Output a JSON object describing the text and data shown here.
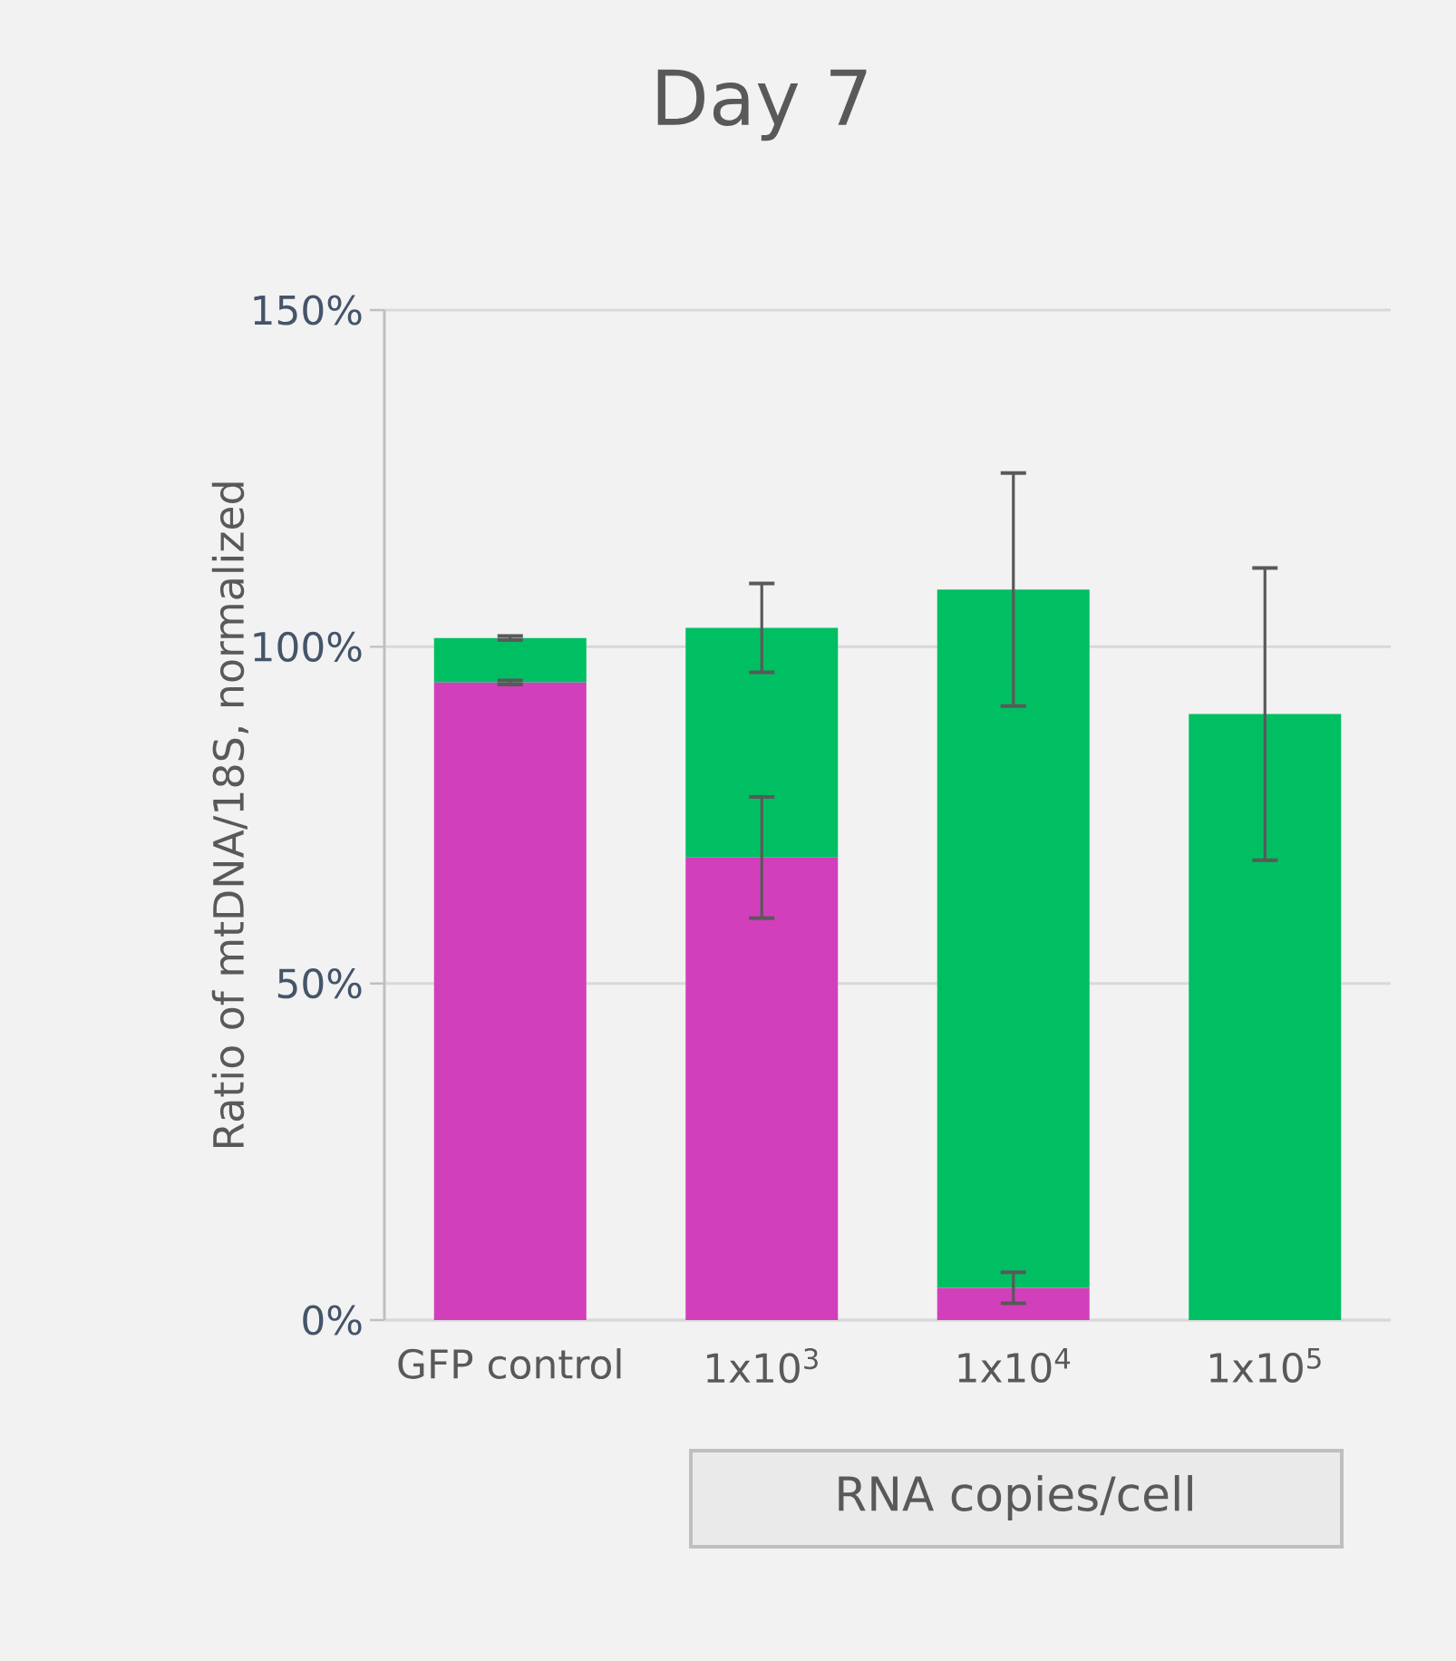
{
  "chart_data": {
    "type": "bar",
    "title": "Day 7",
    "ylabel": "Ratio of  mtDNA/18S, normalized",
    "categories": [
      "GFP control",
      "1x10$^{3}$",
      "1x10$^{4}$",
      "1x10$^{5}$"
    ],
    "stacked": true,
    "series": [
      {
        "color": "#d23fbb",
        "values": [
          94.7,
          68.7,
          4.8,
          0
        ],
        "errors": [
          0.3,
          9,
          2.3,
          null
        ]
      },
      {
        "color": "#00bf63",
        "values": [
          6.6,
          34.1,
          103.7,
          90.0
        ],
        "errors": [
          0.3,
          6.6,
          17.3,
          21.7
        ]
      }
    ],
    "ylim": [
      0,
      150
    ],
    "yticks": [
      {
        "value": 0,
        "label": "0%"
      },
      {
        "value": 50,
        "label": "50%"
      },
      {
        "value": 100,
        "label": "100%"
      },
      {
        "value": 150,
        "label": "150%"
      }
    ],
    "grid": "y",
    "annotations": [
      "RNA copies/cell"
    ]
  }
}
